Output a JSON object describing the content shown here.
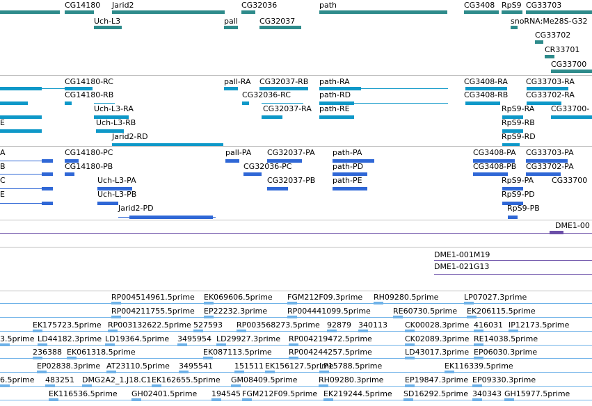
{
  "colors": {
    "gene": "#2e8b8b",
    "transcript": "#0e98c8",
    "cds": "#2f67d6",
    "clone": "#6b4fa8",
    "est": "#6fb2e8",
    "separator": "#bfbfbf"
  },
  "tracks": {
    "genes": [
      "CG14180",
      "Jarid2",
      "CG32036",
      "path",
      "CG3408",
      "RpS9",
      "CG33703",
      "Uch-L3",
      "pall",
      "CG32037",
      "snoRNA:Me28S-G32",
      "CG33702",
      "CR33701",
      "CG33700"
    ],
    "transcripts": [
      "CG14180-RC",
      "pall-RA",
      "CG32037-RB",
      "path-RA",
      "CG3408-RA",
      "CG33703-RA",
      "CG14180-RB",
      "CG32036-RC",
      "path-RD",
      "CG3408-RB",
      "CG33702-RA",
      "Uch-L3-RA",
      "CG32037-RA",
      "path-RE",
      "RpS9-RA",
      "CG33700-",
      "E",
      "Uch-L3-RB",
      "RpS9-RB",
      "Jarid2-RD",
      "RpS9-RD"
    ],
    "proteins": [
      "A",
      "CG14180-PC",
      "pall-PA",
      "CG32037-PA",
      "path-PA",
      "CG3408-PA",
      "CG33703-PA",
      "B",
      "CG14180-PB",
      "CG32036-PC",
      "path-PD",
      "CG3408-PB",
      "CG33702-PA",
      "C",
      "Uch-L3-PA",
      "RpS9-PA",
      "CG33700",
      "E",
      "Uch-L3-PB",
      "CG32037-PB",
      "path-PE",
      "RpS9-PD",
      "Jarid2-PD",
      "RpS9-PB"
    ],
    "clones": [
      "DME1-00",
      "DME1-001M19",
      "DME1-021G13"
    ],
    "ests": [
      "RP004514961.5prime",
      "EK069606.5prime",
      "FGM212F09.3prime",
      "RH09280.5prime",
      "LP07027.3prime",
      "RP004211755.5prime",
      "EP22232.3prime",
      "RP004441099.5prime",
      "RE60730.5prime",
      "EK206115.5prime",
      "EK175723.5prime",
      "RP003132622.5prime",
      "527593",
      "RP003568273.5prime",
      "92879",
      "340113",
      "CK00028.3prime",
      "416031",
      "IP12173.5prime",
      "3.5prime",
      "LD44182.3prime",
      "LD19364.5prime",
      "3495954",
      "LD29927.3prime",
      "RP004219472.5prime",
      "CK02089.3prime",
      "RE14038.5prime",
      "236388",
      "EK061318.5prime",
      "EK087113.5prime",
      "RP004244257.5prime",
      "LD43017.3prime",
      "EP06030.3prime",
      "EP02838.3prime",
      "AT23110.5prime",
      "3495541",
      "151511",
      "EK156127.5prime",
      "LP15788.5prime",
      "EK116339.5prime",
      "6.5prime",
      "483251",
      "DMG2A2_1.J18.C1",
      "EK162655.5prime",
      "GM08409.5prime",
      "RH09280.3prime",
      "EP19847.3prime",
      "EP09330.3prime",
      "EK116536.5prime",
      "GH02401.5prime",
      "194545",
      "FGM212F09.5prime",
      "EK219244.5prime",
      "SD16292.5prime",
      "340343",
      "GH15977.5prime"
    ]
  }
}
